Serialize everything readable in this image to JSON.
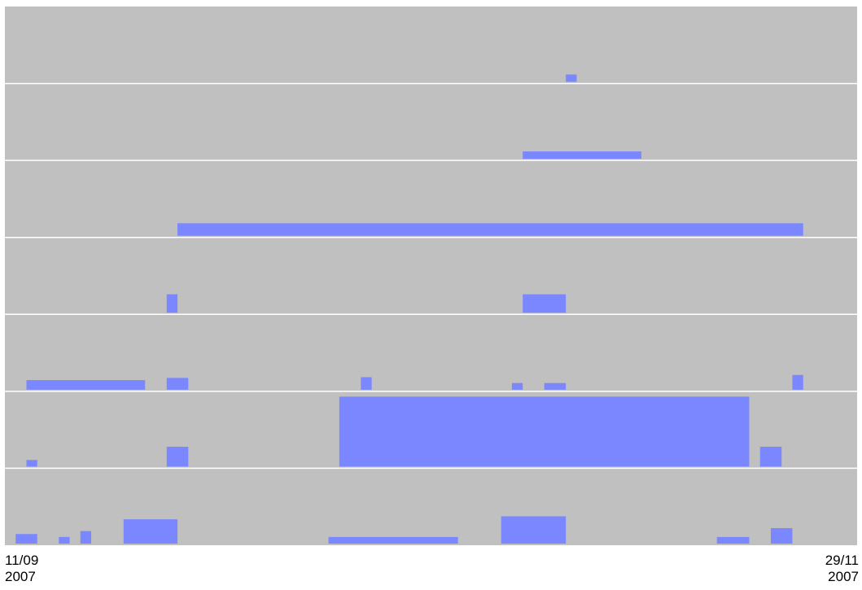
{
  "chart_data": {
    "type": "bar",
    "x_start": "2007-09-11",
    "x_end": "2007-11-29",
    "x_tick_labels": [
      {
        "date": "11/09",
        "year": "2007"
      },
      {
        "date": "29/11",
        "year": "2007"
      }
    ],
    "grid": true,
    "background_color": "#c0c0c0",
    "bar_color": "#7b87ff",
    "grid_color": "#ffffff",
    "rows": [
      {
        "bars": [
          {
            "start": "2007-11-02",
            "end": "2007-11-03",
            "level": 0.1
          }
        ]
      },
      {
        "bars": [
          {
            "start": "2007-10-29",
            "end": "2007-11-09",
            "level": 0.1
          }
        ]
      },
      {
        "bars": [
          {
            "start": "2007-09-27",
            "end": "2007-11-24",
            "level": 0.17
          }
        ]
      },
      {
        "bars": [
          {
            "start": "2007-09-26",
            "end": "2007-09-27",
            "level": 0.25
          },
          {
            "start": "2007-10-29",
            "end": "2007-11-02",
            "level": 0.25
          }
        ]
      },
      {
        "bars": [
          {
            "start": "2007-09-13",
            "end": "2007-09-24",
            "level": 0.13
          },
          {
            "start": "2007-09-26",
            "end": "2007-09-28",
            "level": 0.16
          },
          {
            "start": "2007-10-14",
            "end": "2007-10-15",
            "level": 0.17
          },
          {
            "start": "2007-10-28",
            "end": "2007-10-29",
            "level": 0.09
          },
          {
            "start": "2007-10-31",
            "end": "2007-11-02",
            "level": 0.09
          },
          {
            "start": "2007-11-23",
            "end": "2007-11-24",
            "level": 0.2
          }
        ]
      },
      {
        "bars": [
          {
            "start": "2007-09-13",
            "end": "2007-09-14",
            "level": 0.09
          },
          {
            "start": "2007-09-26",
            "end": "2007-09-28",
            "level": 0.27
          },
          {
            "start": "2007-10-12",
            "end": "2007-11-19",
            "level": 0.95
          },
          {
            "start": "2007-11-20",
            "end": "2007-11-22",
            "level": 0.27
          }
        ]
      },
      {
        "bars": [
          {
            "start": "2007-09-12",
            "end": "2007-09-14",
            "level": 0.13
          },
          {
            "start": "2007-09-16",
            "end": "2007-09-17",
            "level": 0.09
          },
          {
            "start": "2007-09-18",
            "end": "2007-09-19",
            "level": 0.17
          },
          {
            "start": "2007-09-22",
            "end": "2007-09-27",
            "level": 0.33
          },
          {
            "start": "2007-10-11",
            "end": "2007-10-23",
            "level": 0.09
          },
          {
            "start": "2007-10-27",
            "end": "2007-11-02",
            "level": 0.37
          },
          {
            "start": "2007-11-16",
            "end": "2007-11-19",
            "level": 0.09
          },
          {
            "start": "2007-11-21",
            "end": "2007-11-23",
            "level": 0.21
          }
        ]
      }
    ]
  }
}
